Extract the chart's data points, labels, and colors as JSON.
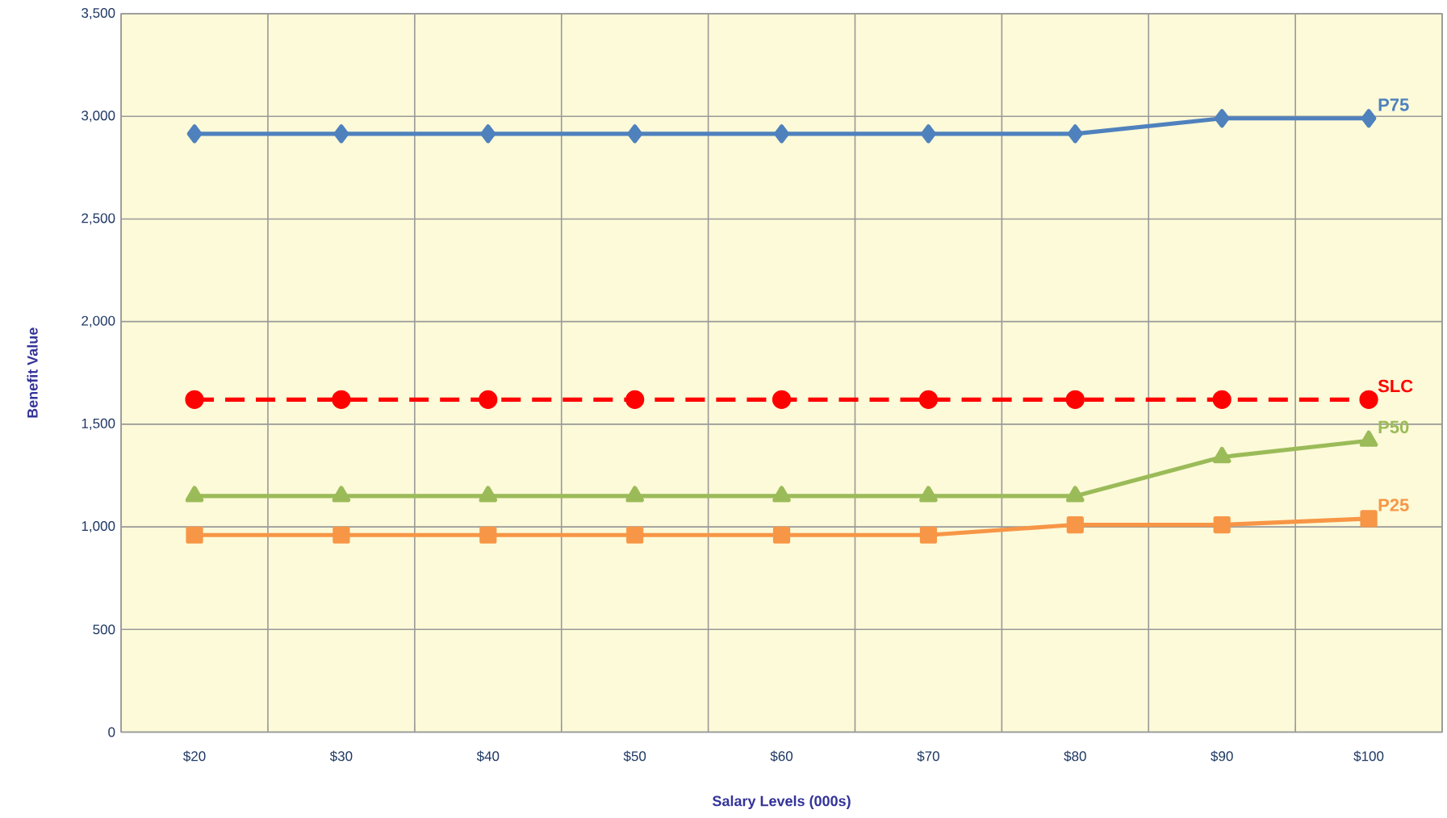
{
  "chart_data": {
    "type": "line",
    "xlabel": "Salary Levels (000s)",
    "ylabel": "Benefit Value",
    "categories": [
      "$20",
      "$30",
      "$40",
      "$50",
      "$60",
      "$70",
      "$80",
      "$90",
      "$100"
    ],
    "series": [
      {
        "name": "P75",
        "color": "#4f81bd",
        "marker": "diamond",
        "line_style": "solid",
        "values": [
          2915,
          2915,
          2915,
          2915,
          2915,
          2915,
          2915,
          2990,
          2990
        ]
      },
      {
        "name": "SLC",
        "color": "#ff0000",
        "marker": "circle",
        "line_style": "dashed",
        "values": [
          1620,
          1620,
          1620,
          1620,
          1620,
          1620,
          1620,
          1620,
          1620
        ]
      },
      {
        "name": "P50",
        "color": "#9bbb59",
        "marker": "triangle",
        "line_style": "solid",
        "values": [
          1150,
          1150,
          1150,
          1150,
          1150,
          1150,
          1150,
          1340,
          1420
        ]
      },
      {
        "name": "P25",
        "color": "#f79646",
        "marker": "square",
        "line_style": "solid",
        "values": [
          960,
          960,
          960,
          960,
          960,
          960,
          1010,
          1010,
          1040
        ]
      }
    ],
    "ylim": [
      0,
      3500
    ],
    "yticks": [
      {
        "value": 0,
        "label": "0"
      },
      {
        "value": 500,
        "label": "500"
      },
      {
        "value": 1000,
        "label": "1,000"
      },
      {
        "value": 1500,
        "label": "1,500"
      },
      {
        "value": 2000,
        "label": "2,000"
      },
      {
        "value": 2500,
        "label": "2,500"
      },
      {
        "value": 3000,
        "label": "3,000"
      },
      {
        "value": 3500,
        "label": "3,500"
      }
    ],
    "grid": true,
    "legend": false
  }
}
